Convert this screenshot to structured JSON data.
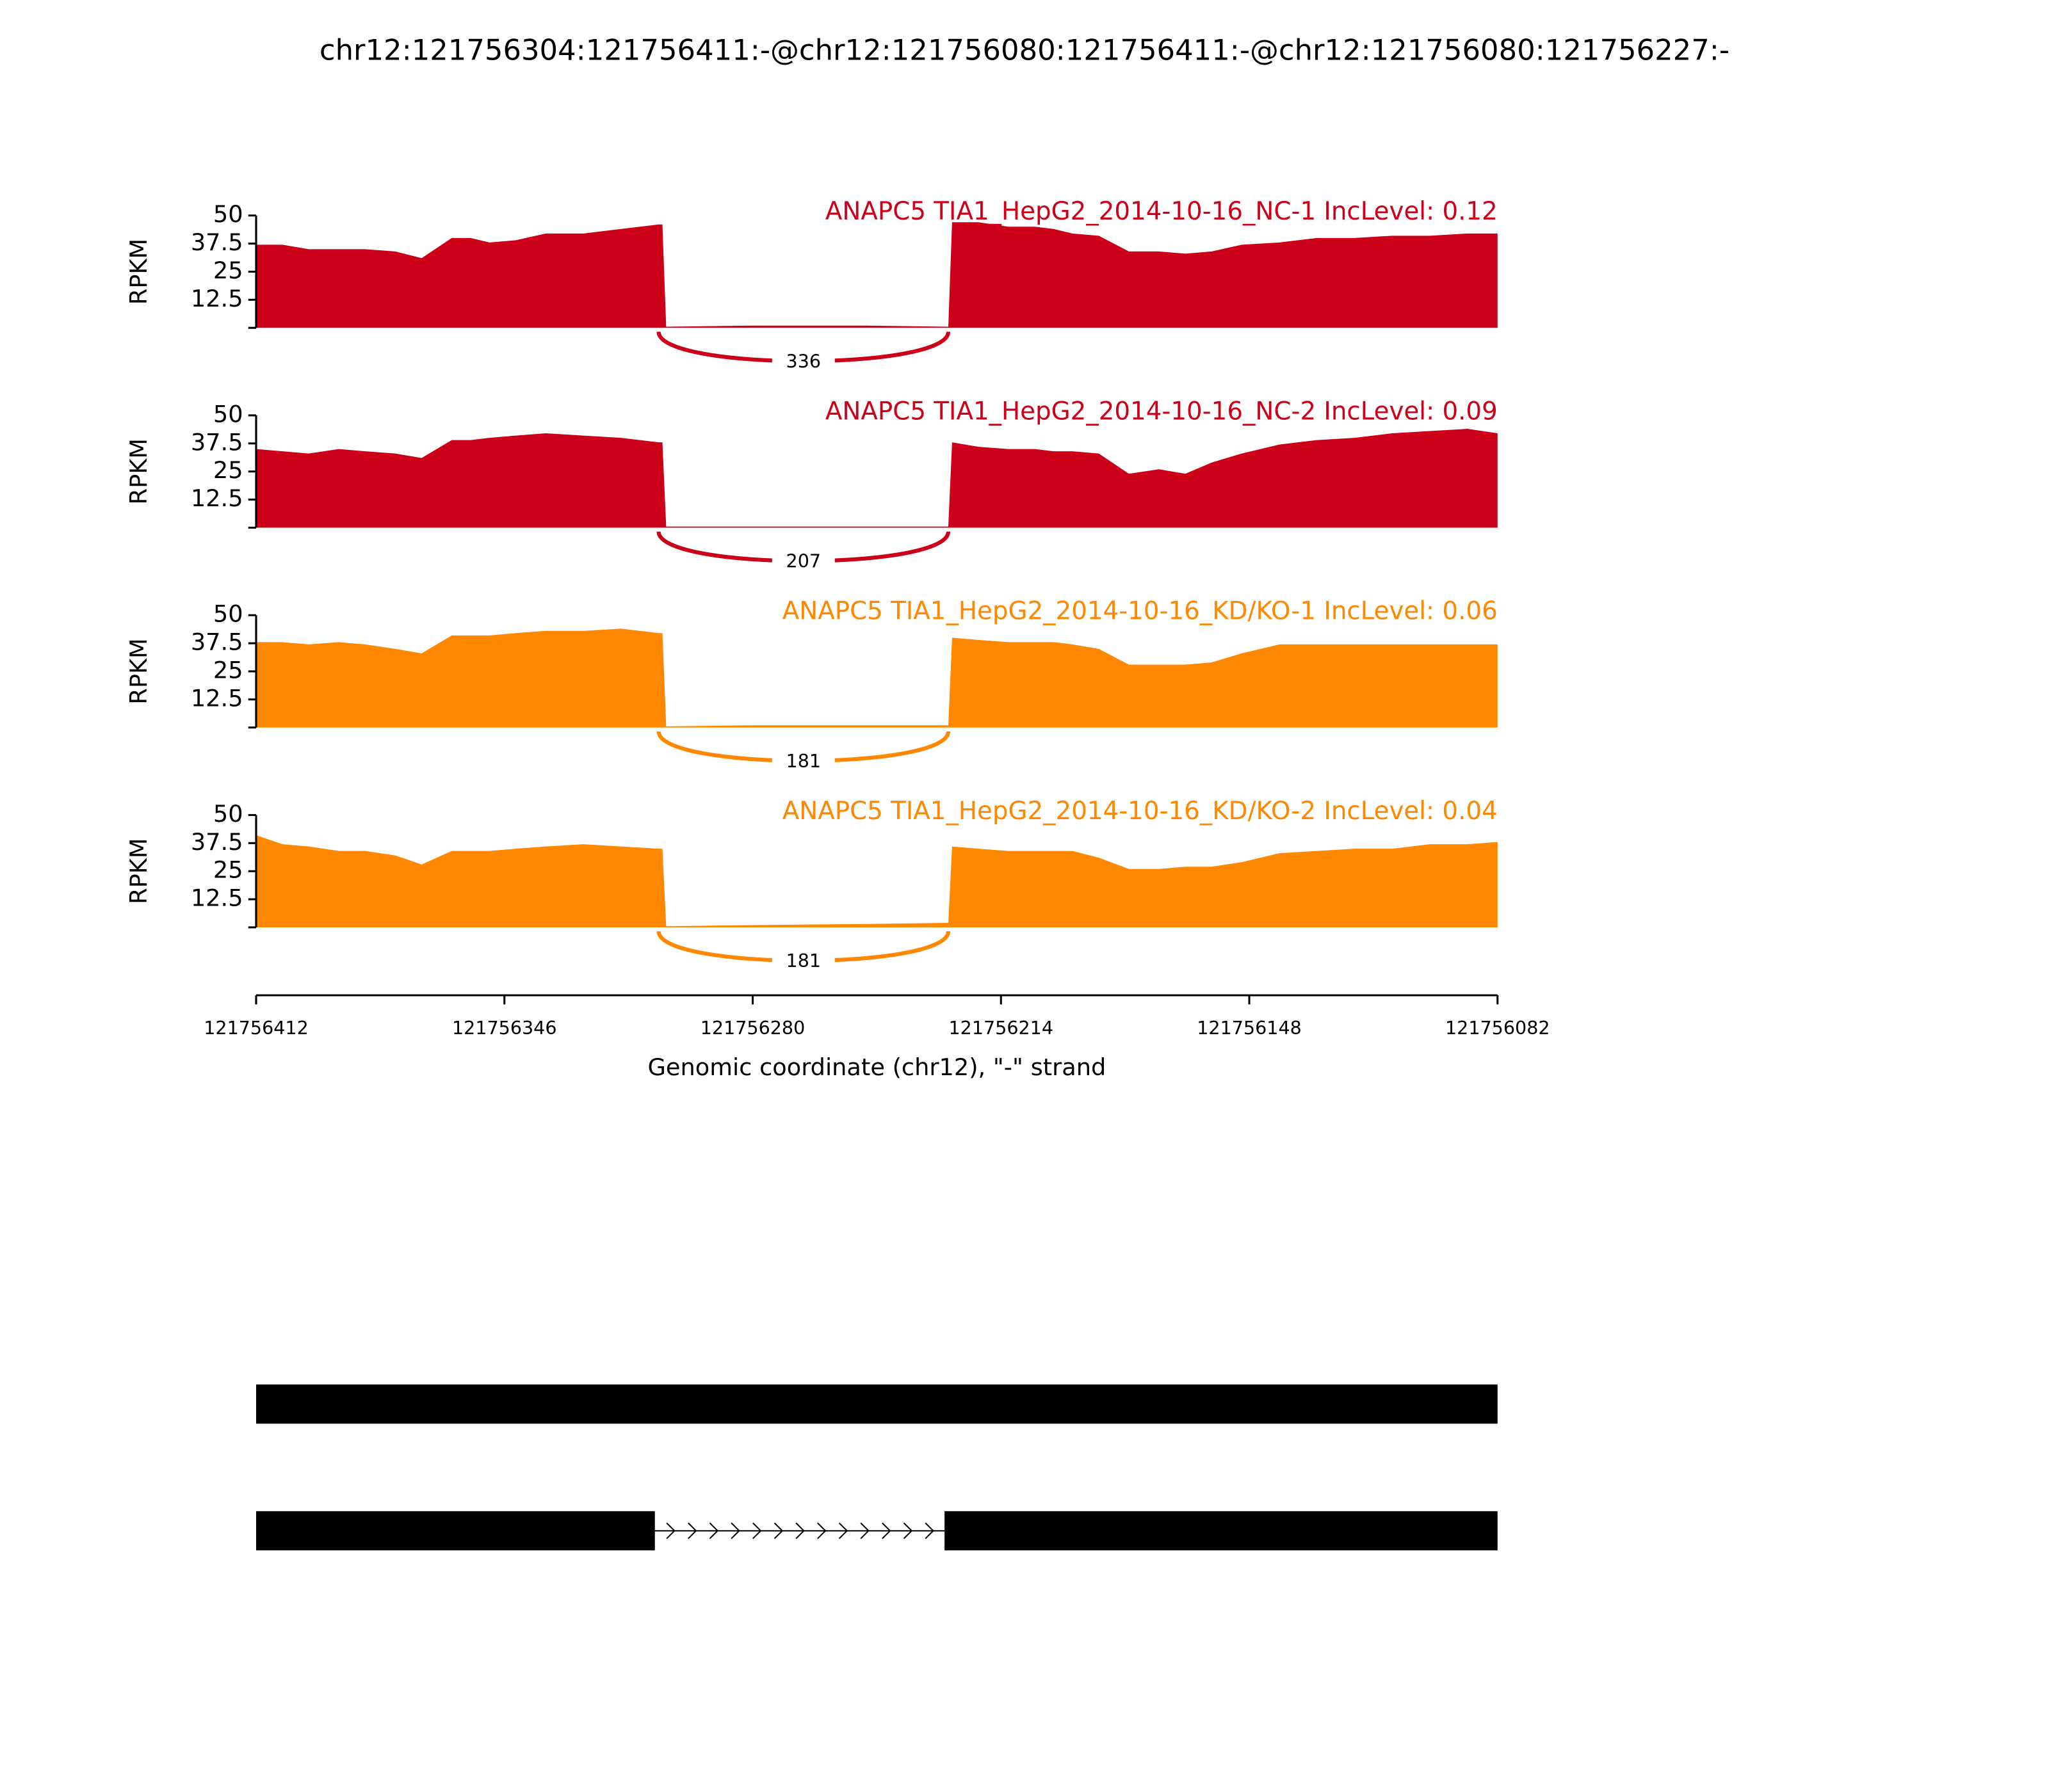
{
  "title": "chr12:121756304:121756411:-@chr12:121756080:121756411:-@chr12:121756080:121756227:-",
  "chart_data": [
    {
      "type": "area",
      "title": "ANAPC5 TIA1_HepG2_2014-10-16_NC-1 IncLevel: 0.12",
      "color": "#cc0018",
      "ylabel": "RPKM",
      "x": [
        121756412,
        121756405,
        121756398,
        121756390,
        121756383,
        121756375,
        121756368,
        121756360,
        121756355,
        121756350,
        121756343,
        121756335,
        121756325,
        121756315,
        121756305,
        121756304,
        121756303,
        121756280,
        121756250,
        121756228,
        121756227,
        121756220,
        121756212,
        121756205,
        121756200,
        121756195,
        121756188,
        121756180,
        121756172,
        121756165,
        121756158,
        121756150,
        121756140,
        121756130,
        121756120,
        121756110,
        121756100,
        121756090,
        121756082
      ],
      "values": [
        37,
        37,
        35,
        35,
        35,
        34,
        31,
        40,
        40,
        38,
        39,
        42,
        42,
        44,
        46,
        46,
        0.5,
        1,
        1,
        0.5,
        47,
        47,
        45,
        45,
        44,
        42,
        41,
        34,
        34,
        33,
        34,
        37,
        38,
        40,
        40,
        41,
        41,
        42,
        42
      ],
      "xlim": [
        121756412,
        121756082
      ],
      "ylim": [
        0,
        50
      ],
      "yticks": [
        12.5,
        25,
        37.5,
        50
      ],
      "junction": {
        "start": 121756305,
        "end": 121756228,
        "count": 336
      }
    },
    {
      "type": "area",
      "title": "ANAPC5 TIA1_HepG2_2014-10-16_NC-2 IncLevel: 0.09",
      "color": "#cc0018",
      "ylabel": "RPKM",
      "x": [
        121756412,
        121756405,
        121756398,
        121756390,
        121756383,
        121756375,
        121756368,
        121756360,
        121756355,
        121756350,
        121756343,
        121756335,
        121756325,
        121756315,
        121756305,
        121756304,
        121756303,
        121756280,
        121756250,
        121756228,
        121756227,
        121756220,
        121756212,
        121756205,
        121756200,
        121756195,
        121756188,
        121756180,
        121756172,
        121756165,
        121756158,
        121756150,
        121756140,
        121756130,
        121756120,
        121756110,
        121756100,
        121756090,
        121756082
      ],
      "values": [
        35,
        34,
        33,
        35,
        34,
        33,
        31,
        39,
        39,
        40,
        41,
        42,
        41,
        40,
        38,
        38,
        0.5,
        0.5,
        0.5,
        0.5,
        38,
        36,
        35,
        35,
        34,
        34,
        33,
        24,
        26,
        24,
        29,
        33,
        37,
        39,
        40,
        42,
        43,
        44,
        42
      ],
      "xlim": [
        121756412,
        121756082
      ],
      "ylim": [
        0,
        50
      ],
      "yticks": [
        12.5,
        25,
        37.5,
        50
      ],
      "junction": {
        "start": 121756305,
        "end": 121756228,
        "count": 207
      }
    },
    {
      "type": "area",
      "title": "ANAPC5 TIA1_HepG2_2014-10-16_KD/KO-1 IncLevel: 0.06",
      "color": "#ff8800",
      "ylabel": "RPKM",
      "x": [
        121756412,
        121756405,
        121756398,
        121756390,
        121756383,
        121756375,
        121756368,
        121756360,
        121756355,
        121756350,
        121756343,
        121756335,
        121756325,
        121756315,
        121756305,
        121756304,
        121756303,
        121756280,
        121756250,
        121756228,
        121756227,
        121756220,
        121756212,
        121756205,
        121756200,
        121756195,
        121756188,
        121756180,
        121756172,
        121756165,
        121756158,
        121756150,
        121756140,
        121756130,
        121756120,
        121756110,
        121756100,
        121756090,
        121756082
      ],
      "values": [
        38,
        38,
        37,
        38,
        37,
        35,
        33,
        41,
        41,
        41,
        42,
        43,
        43,
        44,
        42,
        42,
        0.5,
        1,
        1,
        1,
        40,
        39,
        38,
        38,
        38,
        37,
        35,
        28,
        28,
        28,
        29,
        33,
        37,
        37,
        37,
        37,
        37,
        37,
        37
      ],
      "xlim": [
        121756412,
        121756082
      ],
      "ylim": [
        0,
        50
      ],
      "yticks": [
        12.5,
        25,
        37.5,
        50
      ],
      "junction": {
        "start": 121756305,
        "end": 121756228,
        "count": 181
      }
    },
    {
      "type": "area",
      "title": "ANAPC5 TIA1_HepG2_2014-10-16_KD/KO-2 IncLevel: 0.04",
      "color": "#ff8800",
      "ylabel": "RPKM",
      "x": [
        121756412,
        121756405,
        121756398,
        121756390,
        121756383,
        121756375,
        121756368,
        121756360,
        121756355,
        121756350,
        121756343,
        121756335,
        121756325,
        121756315,
        121756305,
        121756304,
        121756303,
        121756280,
        121756250,
        121756228,
        121756227,
        121756220,
        121756212,
        121756205,
        121756200,
        121756195,
        121756188,
        121756180,
        121756172,
        121756165,
        121756158,
        121756150,
        121756140,
        121756130,
        121756120,
        121756110,
        121756100,
        121756090,
        121756082
      ],
      "values": [
        41,
        37,
        36,
        34,
        34,
        32,
        28,
        34,
        34,
        34,
        35,
        36,
        37,
        36,
        35,
        35,
        0.5,
        1,
        1.5,
        2,
        36,
        35,
        34,
        34,
        34,
        34,
        31,
        26,
        26,
        27,
        27,
        29,
        33,
        34,
        35,
        35,
        37,
        37,
        38
      ],
      "xlim": [
        121756412,
        121756082
      ],
      "ylim": [
        0,
        50
      ],
      "yticks": [
        12.5,
        25,
        37.5,
        50
      ],
      "xticks": [
        121756412,
        121756346,
        121756280,
        121756214,
        121756148,
        121756082
      ],
      "xlabel": "Genomic coordinate (chr12), \"-\" strand",
      "junction": {
        "start": 121756305,
        "end": 121756228,
        "count": 181
      }
    }
  ],
  "gene_model": {
    "transcripts": [
      {
        "exons": [
          [
            121756412,
            121756082
          ]
        ]
      },
      {
        "exons": [
          [
            121756412,
            121756306
          ],
          [
            121756229,
            121756082
          ]
        ]
      }
    ]
  }
}
